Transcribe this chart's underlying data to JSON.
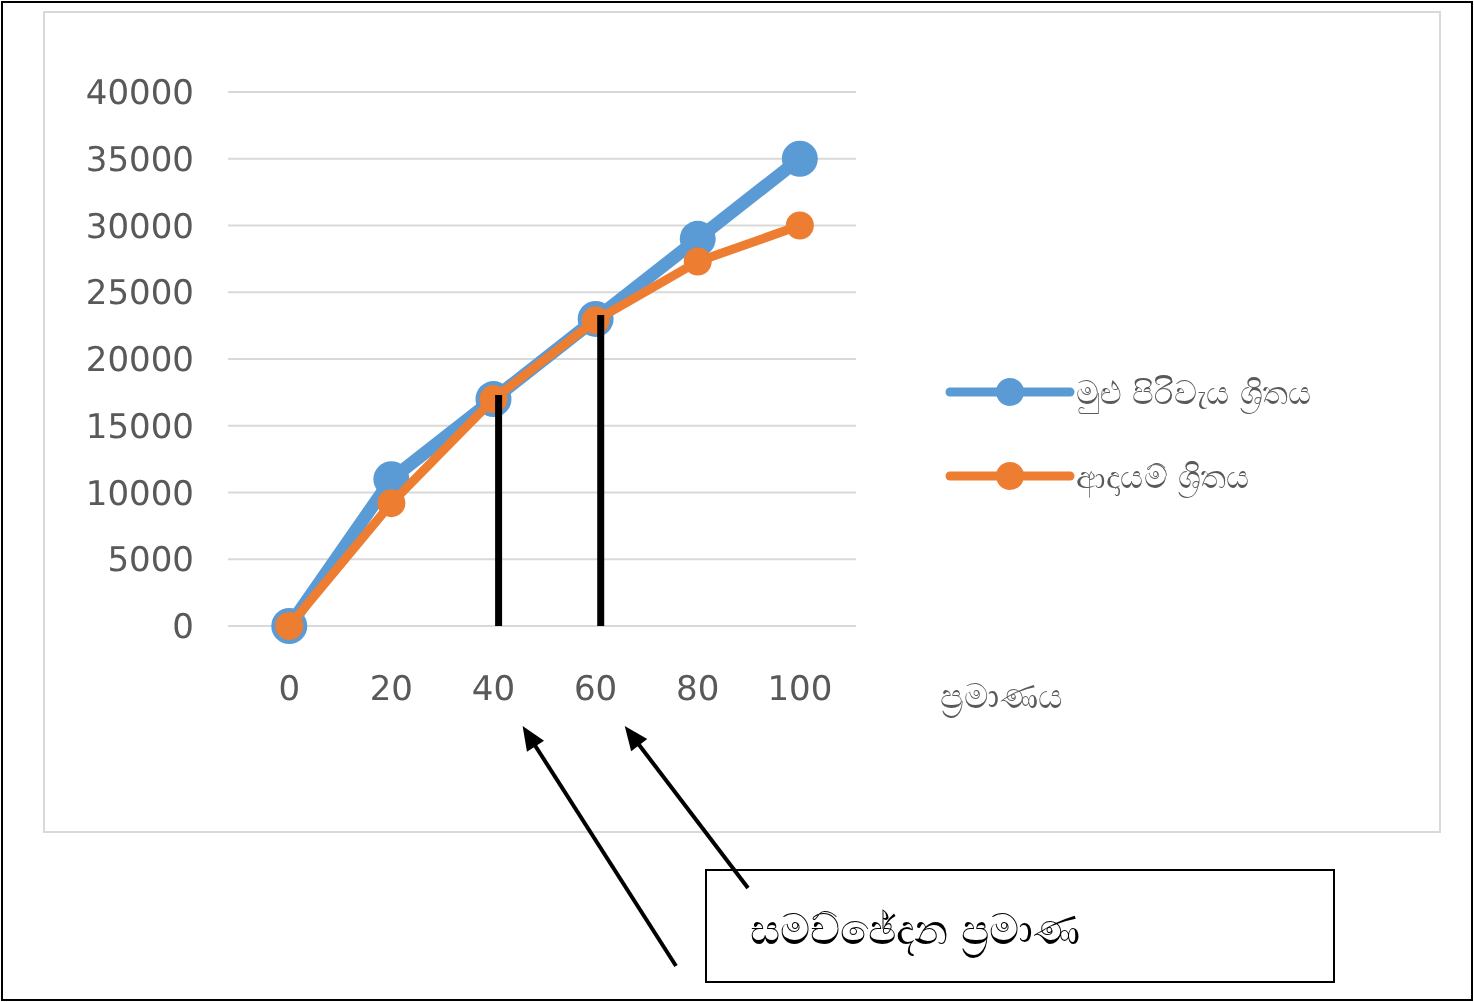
{
  "chart_data": {
    "type": "line",
    "xlabel": "ප්‍රමාණය",
    "x": [
      0,
      20,
      40,
      60,
      80,
      100
    ],
    "xlim": [
      -12,
      111
    ],
    "xticks": [
      0,
      20,
      40,
      60,
      80,
      100
    ],
    "ylim": [
      0,
      40000
    ],
    "yticks": [
      0,
      5000,
      10000,
      15000,
      20000,
      25000,
      30000,
      35000,
      40000
    ],
    "grid": "y",
    "legend": "right",
    "marker": "circle",
    "line_style": "solid",
    "series": [
      {
        "name": "මුළු පිරිවැය ශ්‍රිතය",
        "color": "#5b9bd5",
        "values": [
          0,
          11000,
          17000,
          23000,
          29000,
          35000
        ]
      },
      {
        "name": "ආදායම් ශ්‍රිතය",
        "color": "#ed7d31",
        "values": [
          0,
          9200,
          17000,
          22900,
          27300,
          30000
        ]
      }
    ],
    "ref_lines": [
      {
        "axis": "x",
        "value": 41,
        "color": "#000000"
      },
      {
        "axis": "x",
        "value": 61,
        "color": "#000000"
      }
    ],
    "annotations": [
      "සමච්ඡේදන ප්‍රමාණ"
    ]
  }
}
